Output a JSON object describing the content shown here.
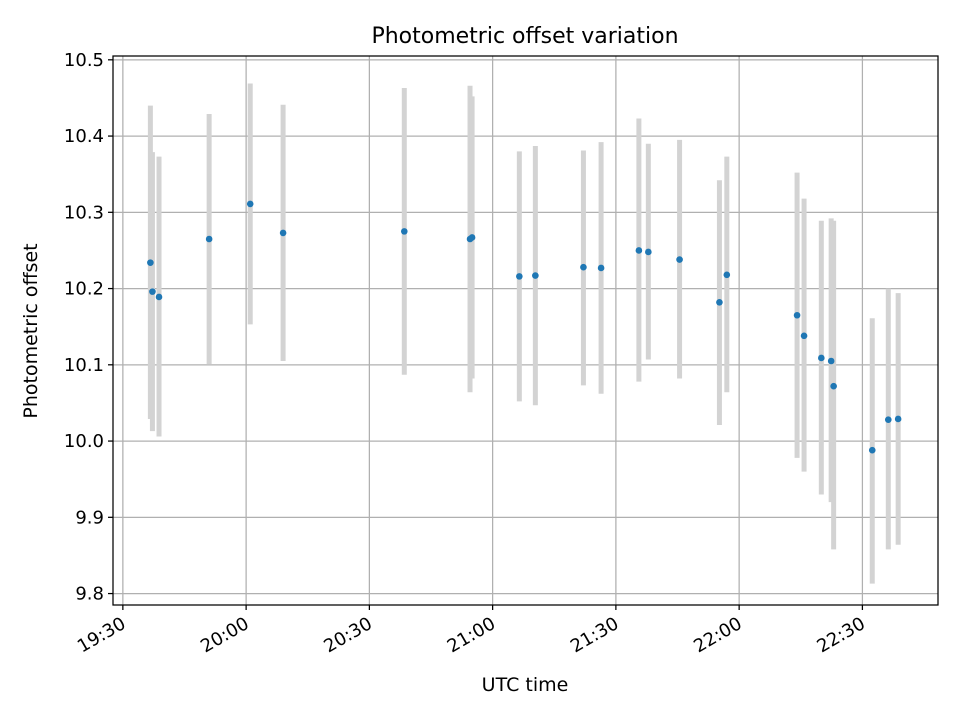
{
  "chart_data": {
    "type": "scatter",
    "title": "Photometric offset variation",
    "xlabel": "UTC time",
    "ylabel": "Photometric offset",
    "x_tick_labels": [
      "19:30",
      "20:00",
      "20:30",
      "21:00",
      "21:30",
      "22:00",
      "22:30"
    ],
    "y_ticks": [
      9.8,
      9.9,
      10.0,
      10.1,
      10.2,
      10.3,
      10.4,
      10.5
    ],
    "y_tick_labels": [
      "9.8",
      "9.9",
      "10.0",
      "10.1",
      "10.2",
      "10.3",
      "10.4",
      "10.5"
    ],
    "xlim": [
      "19:27:36",
      "22:48:24"
    ],
    "ylim": [
      9.785,
      10.505
    ],
    "grid": true,
    "marker_color": "#1f77b4",
    "errorbar_color": "#d3d3d3",
    "points": [
      {
        "x": "19:36:42",
        "y": 10.234,
        "err_low": 10.029,
        "err_high": 10.44
      },
      {
        "x": "19:37:12",
        "y": 10.196,
        "err_low": 10.013,
        "err_high": 10.379
      },
      {
        "x": "19:38:48",
        "y": 10.189,
        "err_low": 10.006,
        "err_high": 10.373
      },
      {
        "x": "19:51:00",
        "y": 10.265,
        "err_low": 10.101,
        "err_high": 10.429
      },
      {
        "x": "20:01:00",
        "y": 10.311,
        "err_low": 10.153,
        "err_high": 10.469
      },
      {
        "x": "20:09:00",
        "y": 10.273,
        "err_low": 10.105,
        "err_high": 10.441
      },
      {
        "x": "20:38:30",
        "y": 10.275,
        "err_low": 10.087,
        "err_high": 10.463
      },
      {
        "x": "20:54:30",
        "y": 10.265,
        "err_low": 10.064,
        "err_high": 10.466
      },
      {
        "x": "20:55:00",
        "y": 10.267,
        "err_low": 10.082,
        "err_high": 10.452
      },
      {
        "x": "21:06:30",
        "y": 10.216,
        "err_low": 10.052,
        "err_high": 10.38
      },
      {
        "x": "21:10:24",
        "y": 10.217,
        "err_low": 10.047,
        "err_high": 10.387
      },
      {
        "x": "21:22:06",
        "y": 10.228,
        "err_low": 10.073,
        "err_high": 10.381
      },
      {
        "x": "21:26:24",
        "y": 10.227,
        "err_low": 10.062,
        "err_high": 10.392
      },
      {
        "x": "21:35:36",
        "y": 10.25,
        "err_low": 10.078,
        "err_high": 10.423
      },
      {
        "x": "21:37:54",
        "y": 10.248,
        "err_low": 10.107,
        "err_high": 10.39
      },
      {
        "x": "21:45:30",
        "y": 10.238,
        "err_low": 10.082,
        "err_high": 10.395
      },
      {
        "x": "21:55:12",
        "y": 10.182,
        "err_low": 10.021,
        "err_high": 10.342
      },
      {
        "x": "21:57:00",
        "y": 10.218,
        "err_low": 10.064,
        "err_high": 10.373
      },
      {
        "x": "22:14:06",
        "y": 10.165,
        "err_low": 9.978,
        "err_high": 10.352
      },
      {
        "x": "22:15:48",
        "y": 10.138,
        "err_low": 9.96,
        "err_high": 10.318
      },
      {
        "x": "22:20:00",
        "y": 10.109,
        "err_low": 9.93,
        "err_high": 10.289
      },
      {
        "x": "22:22:24",
        "y": 10.105,
        "err_low": 9.92,
        "err_high": 10.292
      },
      {
        "x": "22:23:00",
        "y": 10.072,
        "err_low": 9.858,
        "err_high": 10.289
      },
      {
        "x": "22:32:24",
        "y": 9.988,
        "err_low": 9.813,
        "err_high": 10.161
      },
      {
        "x": "22:36:18",
        "y": 10.028,
        "err_low": 9.858,
        "err_high": 10.2
      },
      {
        "x": "22:38:42",
        "y": 10.029,
        "err_low": 9.864,
        "err_high": 10.194
      }
    ]
  }
}
